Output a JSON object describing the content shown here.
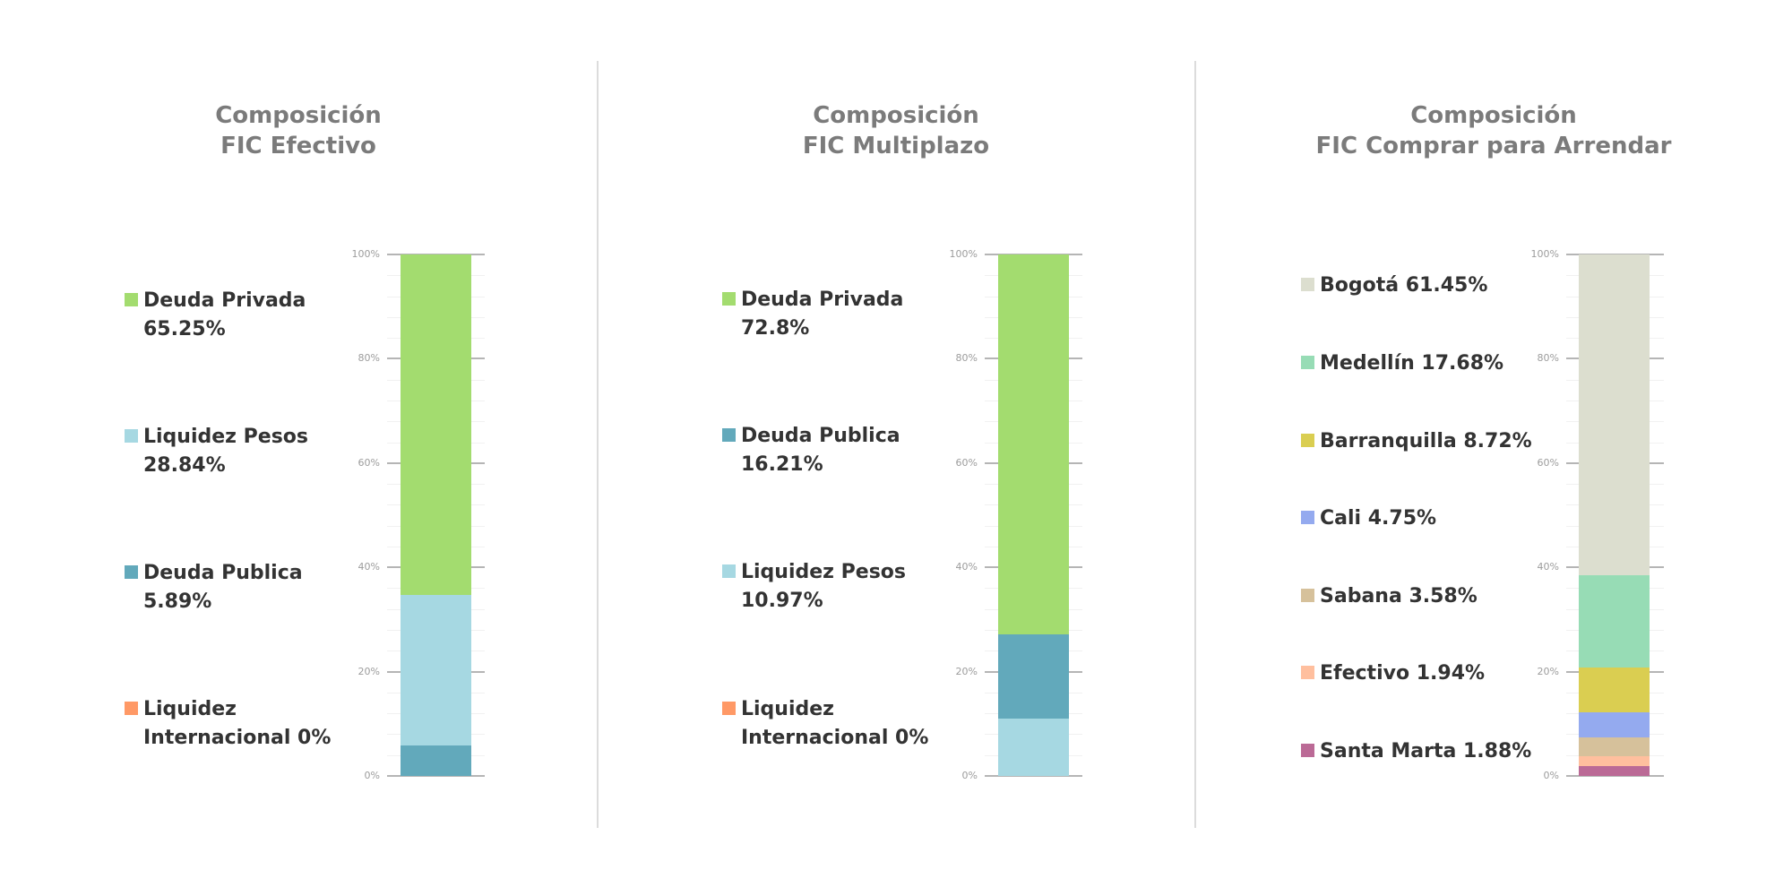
{
  "axis": {
    "ticks": [
      "0%",
      "20%",
      "40%",
      "60%",
      "80%",
      "100%"
    ]
  },
  "panels": [
    {
      "title_line1": "Composición",
      "title_line2": "FIC Efectivo",
      "legend": [
        {
          "label": "Deuda Privada",
          "value": "65.25%",
          "color": "#a3dc6f"
        },
        {
          "label": "Liquidez Pesos",
          "value": "28.84%",
          "color": "#a6d8e2"
        },
        {
          "label": "Deuda Publica",
          "value": "5.89%",
          "color": "#62a9bb"
        },
        {
          "label": "Liquidez",
          "value": "Internacional 0%",
          "color": "#ff9966"
        }
      ]
    },
    {
      "title_line1": "Composición",
      "title_line2": "FIC Multiplazo",
      "legend": [
        {
          "label": "Deuda Privada",
          "value": "72.8%",
          "color": "#a3dc6f"
        },
        {
          "label": "Deuda Publica",
          "value": "16.21%",
          "color": "#62a9bb"
        },
        {
          "label": "Liquidez Pesos",
          "value": "10.97%",
          "color": "#a6d8e2"
        },
        {
          "label": "Liquidez",
          "value": "Internacional 0%",
          "color": "#ff9966"
        }
      ]
    },
    {
      "title_line1": "Composición",
      "title_line2": "FIC Comprar para Arrendar",
      "legend": [
        {
          "label": "Bogotá 61.45%",
          "color": "#dcdecf"
        },
        {
          "label": "Medellín 17.68%",
          "color": "#97dcb5"
        },
        {
          "label": "Barranquilla 8.72%",
          "color": "#dace51"
        },
        {
          "label": "Cali 4.75%",
          "color": "#94aaef"
        },
        {
          "label": "Sabana 3.58%",
          "color": "#d6c19b"
        },
        {
          "label": "Efectivo 1.94%",
          "color": "#ffbf9e"
        },
        {
          "label": "Santa Marta 1.88%",
          "color": "#bb6a96"
        }
      ]
    }
  ],
  "chart_data": [
    {
      "type": "bar",
      "stacked": true,
      "title": "Composición FIC Efectivo",
      "categories": [
        "FIC Efectivo"
      ],
      "series": [
        {
          "name": "Deuda Publica",
          "values": [
            5.89
          ],
          "color": "#62a9bb"
        },
        {
          "name": "Liquidez Pesos",
          "values": [
            28.84
          ],
          "color": "#a6d8e2"
        },
        {
          "name": "Deuda Privada",
          "values": [
            65.25
          ],
          "color": "#a3dc6f"
        },
        {
          "name": "Liquidez Internacional",
          "values": [
            0
          ],
          "color": "#ff9966"
        }
      ],
      "ylim": [
        0,
        100
      ],
      "yticks": [
        "0%",
        "20%",
        "40%",
        "60%",
        "80%",
        "100%"
      ],
      "grid": true,
      "legend_position": "left"
    },
    {
      "type": "bar",
      "stacked": true,
      "title": "Composición FIC Multiplazo",
      "categories": [
        "FIC Multiplazo"
      ],
      "series": [
        {
          "name": "Liquidez Pesos",
          "values": [
            10.97
          ],
          "color": "#a6d8e2"
        },
        {
          "name": "Deuda Publica",
          "values": [
            16.21
          ],
          "color": "#62a9bb"
        },
        {
          "name": "Deuda Privada",
          "values": [
            72.8
          ],
          "color": "#a3dc6f"
        },
        {
          "name": "Liquidez Internacional",
          "values": [
            0
          ],
          "color": "#ff9966"
        }
      ],
      "ylim": [
        0,
        100
      ],
      "yticks": [
        "0%",
        "20%",
        "40%",
        "60%",
        "80%",
        "100%"
      ],
      "grid": true,
      "legend_position": "left"
    },
    {
      "type": "bar",
      "stacked": true,
      "title": "Composición FIC Comprar para Arrendar",
      "categories": [
        "FIC Comprar para Arrendar"
      ],
      "series": [
        {
          "name": "Santa Marta",
          "values": [
            1.88
          ],
          "color": "#bb6a96"
        },
        {
          "name": "Efectivo",
          "values": [
            1.94
          ],
          "color": "#ffbf9e"
        },
        {
          "name": "Sabana",
          "values": [
            3.58
          ],
          "color": "#d6c19b"
        },
        {
          "name": "Cali",
          "values": [
            4.75
          ],
          "color": "#94aaef"
        },
        {
          "name": "Barranquilla",
          "values": [
            8.72
          ],
          "color": "#dace51"
        },
        {
          "name": "Medellín",
          "values": [
            17.68
          ],
          "color": "#97dcb5"
        },
        {
          "name": "Bogotá",
          "values": [
            61.45
          ],
          "color": "#dcdecf"
        }
      ],
      "ylim": [
        0,
        100
      ],
      "yticks": [
        "0%",
        "20%",
        "40%",
        "60%",
        "80%",
        "100%"
      ],
      "grid": true,
      "legend_position": "left"
    }
  ]
}
